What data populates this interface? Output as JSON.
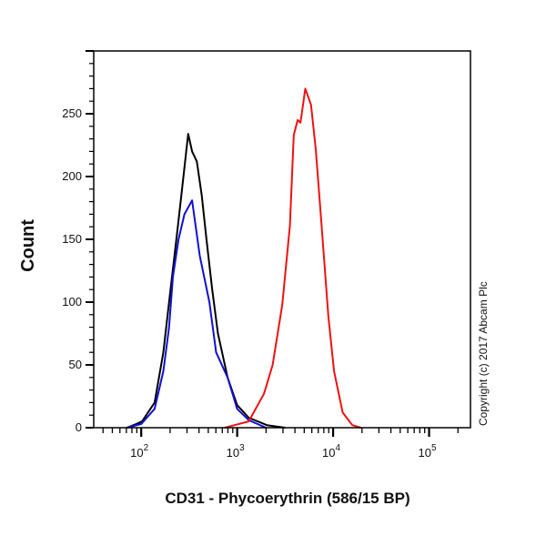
{
  "chart_data": {
    "type": "line",
    "title": "",
    "xlabel": "CD31 - Phycoerythrin (586/15 BP)",
    "ylabel": "Count",
    "x_scale": "log",
    "xlim": [
      32,
      270000
    ],
    "ylim": [
      0,
      300
    ],
    "x_ticks": [
      {
        "value": 100,
        "base": "10",
        "exp": "2"
      },
      {
        "value": 1000,
        "base": "10",
        "exp": "3"
      },
      {
        "value": 10000,
        "base": "10",
        "exp": "4"
      },
      {
        "value": 100000,
        "base": "10",
        "exp": "5"
      }
    ],
    "y_ticks": [
      "0",
      "50",
      "100",
      "150",
      "200",
      "250"
    ],
    "grid": false,
    "annotation": "Copyright (c) 2017 Abcam Plc",
    "series": [
      {
        "color": "#000000",
        "points": [
          [
            71,
            0
          ],
          [
            89,
            3
          ],
          [
            102,
            5
          ],
          [
            138,
            20
          ],
          [
            170,
            60
          ],
          [
            195,
            100
          ],
          [
            245,
            165
          ],
          [
            309,
            234
          ],
          [
            339,
            220
          ],
          [
            380,
            212
          ],
          [
            427,
            185
          ],
          [
            479,
            150
          ],
          [
            550,
            110
          ],
          [
            631,
            75
          ],
          [
            794,
            40
          ],
          [
            1000,
            18
          ],
          [
            1318,
            8
          ],
          [
            2042,
            2
          ],
          [
            3162,
            0
          ]
        ]
      },
      {
        "color": "#1010d0",
        "points": [
          [
            71,
            0
          ],
          [
            100,
            3
          ],
          [
            138,
            15
          ],
          [
            170,
            45
          ],
          [
            195,
            80
          ],
          [
            214,
            120
          ],
          [
            245,
            150
          ],
          [
            282,
            170
          ],
          [
            339,
            181
          ],
          [
            407,
            137
          ],
          [
            513,
            100
          ],
          [
            603,
            60
          ],
          [
            794,
            40
          ],
          [
            1000,
            15
          ],
          [
            1318,
            6
          ],
          [
            1995,
            0
          ]
        ]
      },
      {
        "color": "#ee1111",
        "points": [
          [
            741,
            0
          ],
          [
            1318,
            5
          ],
          [
            1905,
            27
          ],
          [
            2344,
            50
          ],
          [
            2951,
            98
          ],
          [
            3548,
            161
          ],
          [
            3890,
            233
          ],
          [
            4266,
            245
          ],
          [
            4571,
            243
          ],
          [
            5129,
            270
          ],
          [
            5888,
            257
          ],
          [
            6607,
            221
          ],
          [
            7586,
            161
          ],
          [
            8913,
            89
          ],
          [
            10233,
            45
          ],
          [
            12589,
            12
          ],
          [
            15849,
            2
          ],
          [
            19498,
            0
          ]
        ]
      }
    ]
  }
}
